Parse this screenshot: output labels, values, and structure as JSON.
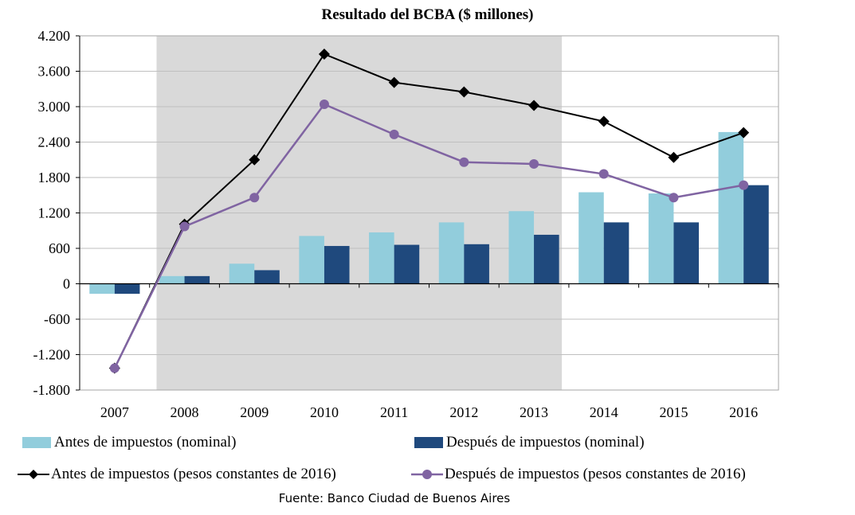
{
  "chart_data": {
    "type": "bar+line",
    "title": "Resultado del BCBA  ($ millones)",
    "xlabel": "",
    "ylabel": "",
    "categories": [
      "2007",
      "2008",
      "2009",
      "2010",
      "2011",
      "2012",
      "2013",
      "2014",
      "2015",
      "2016"
    ],
    "ylim": [
      -1800,
      4200
    ],
    "yticks": [
      -1800,
      -1200,
      -600,
      0,
      600,
      1200,
      1800,
      2400,
      3000,
      3600,
      4200
    ],
    "ytick_labels": [
      "-1.800",
      "-1.200",
      "-600",
      "0",
      "600",
      "1.200",
      "1.800",
      "2.400",
      "3.000",
      "3.600",
      "4.200"
    ],
    "grid": true,
    "shaded_range": [
      "2008",
      "2013"
    ],
    "series": [
      {
        "name": "Antes de impuestos (nominal)",
        "kind": "bar",
        "color": "#92cddc",
        "values": [
          -170,
          130,
          340,
          810,
          870,
          1040,
          1230,
          1550,
          1530,
          2570
        ]
      },
      {
        "name": "Después de impuestos (nominal)",
        "kind": "bar",
        "color": "#1f497d",
        "values": [
          -170,
          130,
          230,
          640,
          660,
          670,
          830,
          1040,
          1040,
          1670
        ]
      },
      {
        "name": "Antes de impuestos (pesos constantes de 2016)",
        "kind": "line",
        "marker": "diamond",
        "color": "#000000",
        "values": [
          -1430,
          1010,
          2100,
          3890,
          3410,
          3250,
          3020,
          2750,
          2140,
          2560
        ]
      },
      {
        "name": "Después de impuestos (pesos constantes de 2016)",
        "kind": "line",
        "marker": "circle",
        "color": "#8064a2",
        "values": [
          -1430,
          970,
          1460,
          3040,
          2530,
          2060,
          2030,
          1860,
          1460,
          1670
        ]
      }
    ],
    "legend_position": "bottom"
  },
  "source": "Fuente: Banco Ciudad de Buenos Aires"
}
